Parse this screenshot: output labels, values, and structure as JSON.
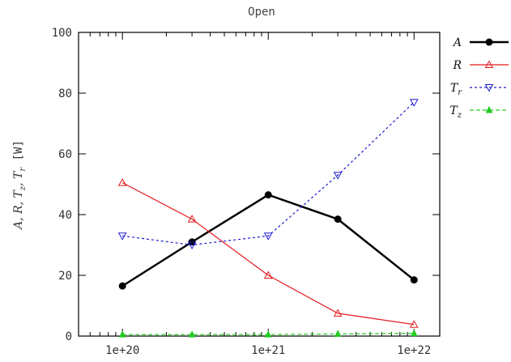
{
  "chart_data": {
    "type": "line",
    "title": "Open",
    "ylabel_main": "A, R, T",
    "ylabel_sub_z": "z",
    "ylabel_sub_r": "r",
    "ylabel_unit": "[W]",
    "x_scale": "log",
    "x": [
      1e+20,
      3e+20,
      1e+21,
      3e+21,
      1e+22
    ],
    "x_ticks": [
      1e+20,
      1e+21,
      1e+22
    ],
    "x_tick_labels": [
      "1e+20",
      "1e+21",
      "1e+22"
    ],
    "xlim": [
      5e+19,
      1.5e+22
    ],
    "ylim": [
      0,
      100
    ],
    "y_ticks": [
      0,
      20,
      40,
      60,
      80,
      100
    ],
    "y_tick_labels": [
      "0",
      "20",
      "40",
      "60",
      "80",
      "100"
    ],
    "grid": false,
    "legend_position": "outside-right",
    "series": [
      {
        "name": "A",
        "sub": "",
        "color": "#000000",
        "dash": "",
        "width": 2.5,
        "marker": "circle",
        "values": [
          16.5,
          31,
          46.5,
          38.5,
          18.5
        ]
      },
      {
        "name": "R",
        "sub": "",
        "color": "#e41a1c",
        "dash": "",
        "width": 1.2,
        "marker": "triangle-up",
        "values": [
          50.5,
          38.5,
          20,
          7.5,
          3.8
        ]
      },
      {
        "name": "T",
        "sub": "r",
        "color": "#1c1ccc",
        "dash": "3,3",
        "width": 1.2,
        "marker": "triangle-down",
        "values": [
          33,
          30,
          33,
          53,
          77
        ]
      },
      {
        "name": "T",
        "sub": "z",
        "color": "#22cc22",
        "dash": "5,3",
        "width": 1.2,
        "marker": "triangle-filled",
        "values": [
          0.5,
          0.5,
          0.5,
          0.7,
          0.9
        ]
      }
    ]
  }
}
